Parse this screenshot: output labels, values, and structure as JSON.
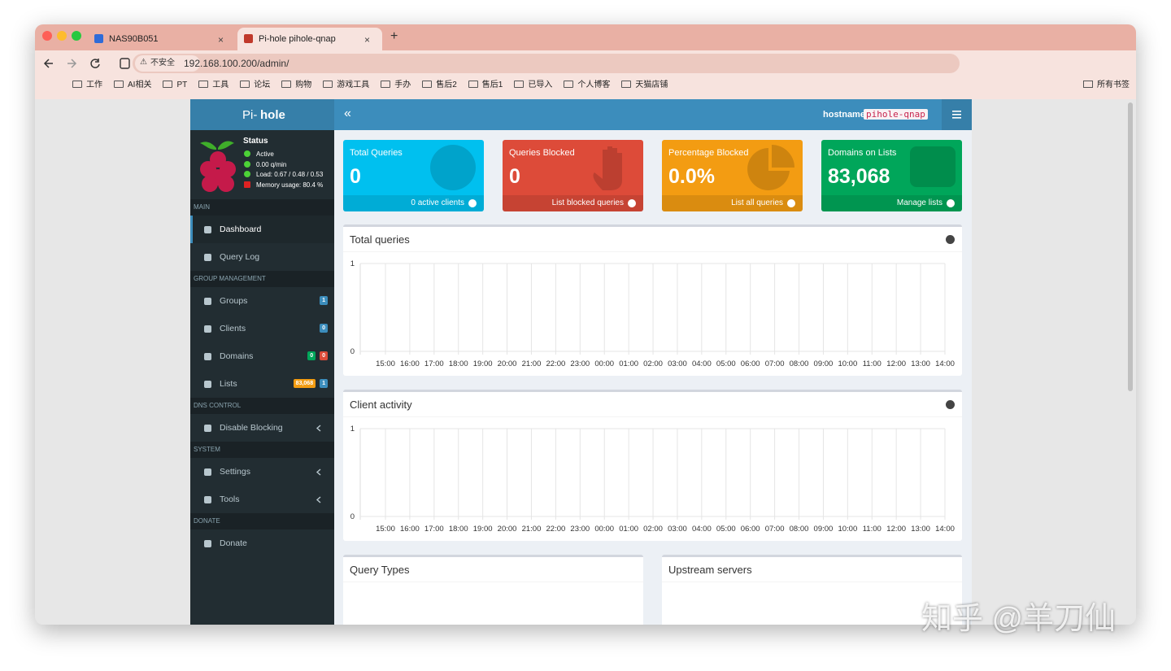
{
  "browser": {
    "tabs": [
      "NAS90B051",
      "Pi-hole pihole-qnap"
    ],
    "security_label": "不安全",
    "url": "192.168.100.200/admin/",
    "bookmarks": [
      "工作",
      "AI相关",
      "PT",
      "工具",
      "论坛",
      "购物",
      "游戏工具",
      "手办",
      "售后2",
      "售后1",
      "已导入",
      "个人博客",
      "天猫店铺"
    ],
    "all_bookmarks": "所有书签"
  },
  "header": {
    "logo_prefix": "Pi-",
    "logo_suffix": "hole",
    "hostname_label": "hostname:",
    "hostname": "pihole-qnap"
  },
  "status": {
    "title": "Status",
    "lines": [
      {
        "text": "Active",
        "color": "#4cd137"
      },
      {
        "text": "0.00 q/min",
        "color": "#4cd137"
      },
      {
        "text": "Load: 0.67 / 0.48 / 0.53",
        "color": "#4cd137"
      },
      {
        "text": "Memory usage: 80.4 %",
        "color": "#dd2222"
      }
    ]
  },
  "menu": [
    {
      "section": "MAIN",
      "items": [
        {
          "label": "Dashboard",
          "active": true
        },
        {
          "label": "Query Log"
        }
      ]
    },
    {
      "section": "GROUP MANAGEMENT",
      "items": [
        {
          "label": "Groups",
          "badges": [
            {
              "text": "1",
              "color": "#3c8dbc"
            }
          ]
        },
        {
          "label": "Clients",
          "badges": [
            {
              "text": "0",
              "color": "#3c8dbc"
            }
          ]
        },
        {
          "label": "Domains",
          "badges": [
            {
              "text": "0",
              "color": "#00a65a"
            },
            {
              "text": "0",
              "color": "#dd4b39"
            }
          ]
        },
        {
          "label": "Lists",
          "badges": [
            {
              "text": "83,068",
              "color": "#f39c12"
            },
            {
              "text": "1",
              "color": "#3c8dbc"
            }
          ]
        }
      ]
    },
    {
      "section": "DNS CONTROL",
      "items": [
        {
          "label": "Disable Blocking",
          "expand": true
        }
      ]
    },
    {
      "section": "SYSTEM",
      "items": [
        {
          "label": "Settings",
          "expand": true
        },
        {
          "label": "Tools",
          "expand": true
        }
      ]
    },
    {
      "section": "DONATE",
      "items": [
        {
          "label": "Donate"
        }
      ]
    }
  ],
  "stats": [
    {
      "title": "Total Queries",
      "value": "0",
      "link": "0 active clients",
      "color": "#00c0ef",
      "icon": "globe"
    },
    {
      "title": "Queries Blocked",
      "value": "0",
      "link": "List blocked queries",
      "color": "#dd4b39",
      "icon": "hand"
    },
    {
      "title": "Percentage Blocked",
      "value": "0.0%",
      "link": "List all queries",
      "color": "#f39c12",
      "icon": "pie"
    },
    {
      "title": "Domains on Lists",
      "value": "83,068",
      "link": "Manage lists",
      "color": "#00a65a",
      "icon": "list"
    }
  ],
  "charts": [
    {
      "type": "line",
      "title": "Total queries",
      "categories": [
        "15:00",
        "16:00",
        "17:00",
        "18:00",
        "19:00",
        "20:00",
        "21:00",
        "22:00",
        "23:00",
        "00:00",
        "01:00",
        "02:00",
        "03:00",
        "04:00",
        "05:00",
        "06:00",
        "07:00",
        "08:00",
        "09:00",
        "10:00",
        "11:00",
        "12:00",
        "13:00",
        "14:00"
      ],
      "ylim": [
        0,
        1
      ],
      "yticks": [
        0,
        1
      ],
      "grid": true
    },
    {
      "type": "line",
      "title": "Client activity",
      "categories": [
        "15:00",
        "16:00",
        "17:00",
        "18:00",
        "19:00",
        "20:00",
        "21:00",
        "22:00",
        "23:00",
        "00:00",
        "01:00",
        "02:00",
        "03:00",
        "04:00",
        "05:00",
        "06:00",
        "07:00",
        "08:00",
        "09:00",
        "10:00",
        "11:00",
        "12:00",
        "13:00",
        "14:00"
      ],
      "ylim": [
        0,
        1
      ],
      "yticks": [
        0,
        1
      ],
      "grid": true
    }
  ],
  "panels": [
    "Query Types",
    "Upstream servers"
  ],
  "watermark": "知乎 @羊刀仙"
}
